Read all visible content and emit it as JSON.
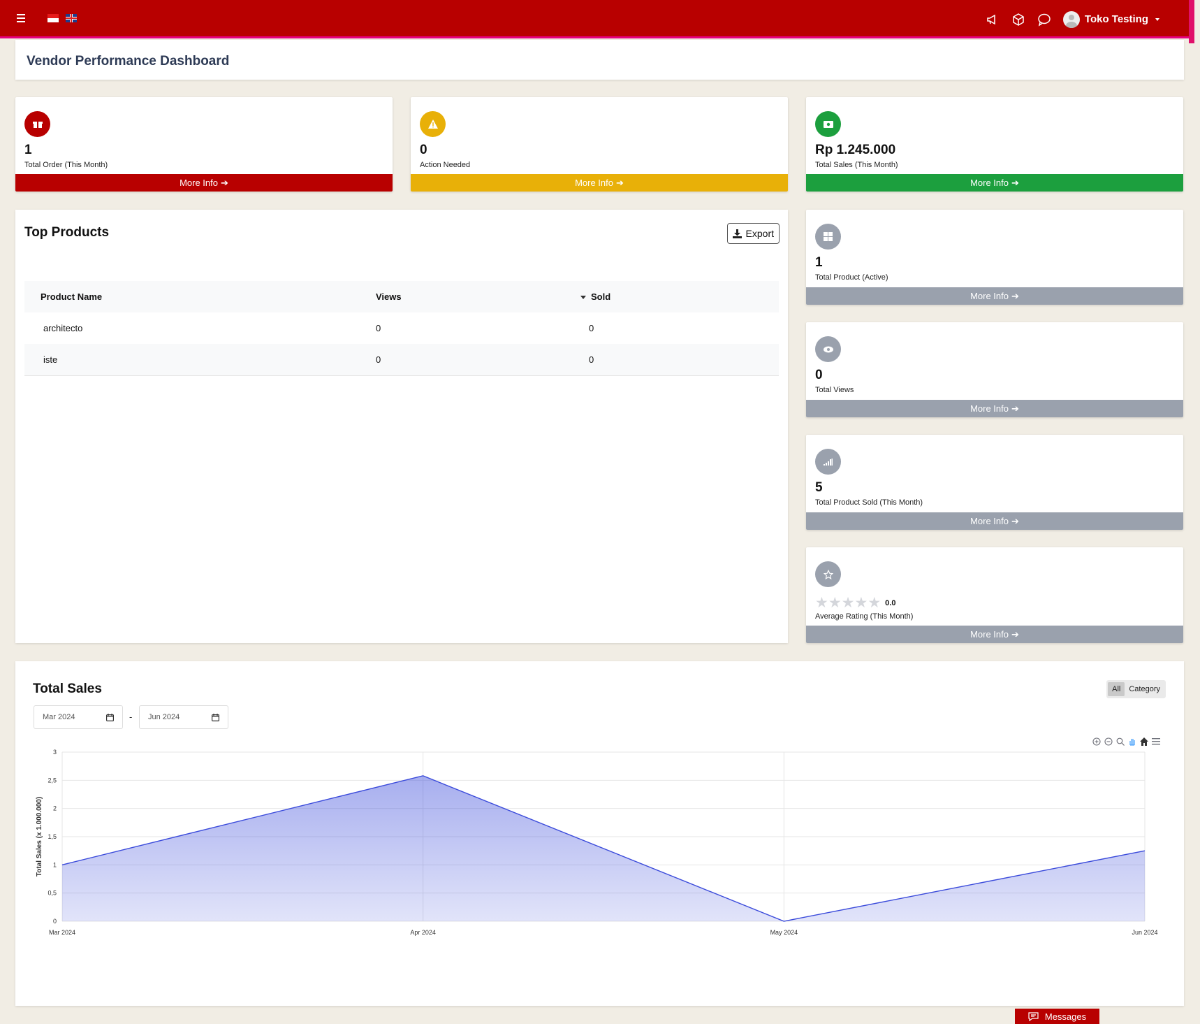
{
  "header": {
    "user_name": "Toko Testing",
    "icons": [
      "menu-icon",
      "flag-id-icon",
      "flag-uk-icon",
      "megaphone-icon",
      "box-icon",
      "chat-icon",
      "avatar"
    ]
  },
  "page": {
    "title": "Vendor Performance Dashboard"
  },
  "stats_top": [
    {
      "value": "1",
      "label": "Total Order (This Month)",
      "more": "More Info",
      "color": "#b80000",
      "icon": "gift-box-icon"
    },
    {
      "value": "0",
      "label": "Action Needed",
      "more": "More Info",
      "color": "#e8b008",
      "icon": "warning-icon"
    },
    {
      "value": "Rp 1.245.000",
      "label": "Total Sales (This Month)",
      "more": "More Info",
      "color": "#1c9f3e",
      "icon": "money-icon"
    }
  ],
  "stats_side": [
    {
      "value": "1",
      "label": "Total Product (Active)",
      "more": "More Info",
      "icon": "grid-icon"
    },
    {
      "value": "0",
      "label": "Total Views",
      "more": "More Info",
      "icon": "eye-icon"
    },
    {
      "value": "5",
      "label": "Total Product Sold (This Month)",
      "more": "More Info",
      "icon": "signal-icon"
    },
    {
      "value": "0.0",
      "label": "Average Rating (This Month)",
      "more": "More Info",
      "icon": "star-icon",
      "rating": 0
    }
  ],
  "top_products": {
    "title": "Top Products",
    "export_label": "Export",
    "columns": [
      "Product Name",
      "Views",
      "Sold"
    ],
    "rows": [
      {
        "name": "architecto",
        "views": "0",
        "sold": "0"
      },
      {
        "name": "iste",
        "views": "0",
        "sold": "0"
      }
    ]
  },
  "total_sales": {
    "title": "Total Sales",
    "toggle": [
      "All",
      "Category"
    ],
    "active_toggle": "All",
    "date_from": "Mar 2024",
    "date_to": "Jun 2024",
    "date_separator": "-"
  },
  "chart_data": {
    "type": "area",
    "categories": [
      "Mar 2024",
      "Apr 2024",
      "May 2024",
      "Jun 2024"
    ],
    "series": [
      {
        "values": [
          1.0,
          2.58,
          0.0,
          1.25
        ]
      }
    ],
    "title": "",
    "xlabel": "",
    "ylabel": "Total Sales (x 1.000.000)",
    "ylim": [
      0,
      3
    ],
    "yticks": [
      "0",
      "0,5",
      "1",
      "1,5",
      "2",
      "2,5",
      "3"
    ],
    "grid": true,
    "color": "#3b4bdb"
  },
  "footer": {
    "messages_label": "Messages"
  }
}
